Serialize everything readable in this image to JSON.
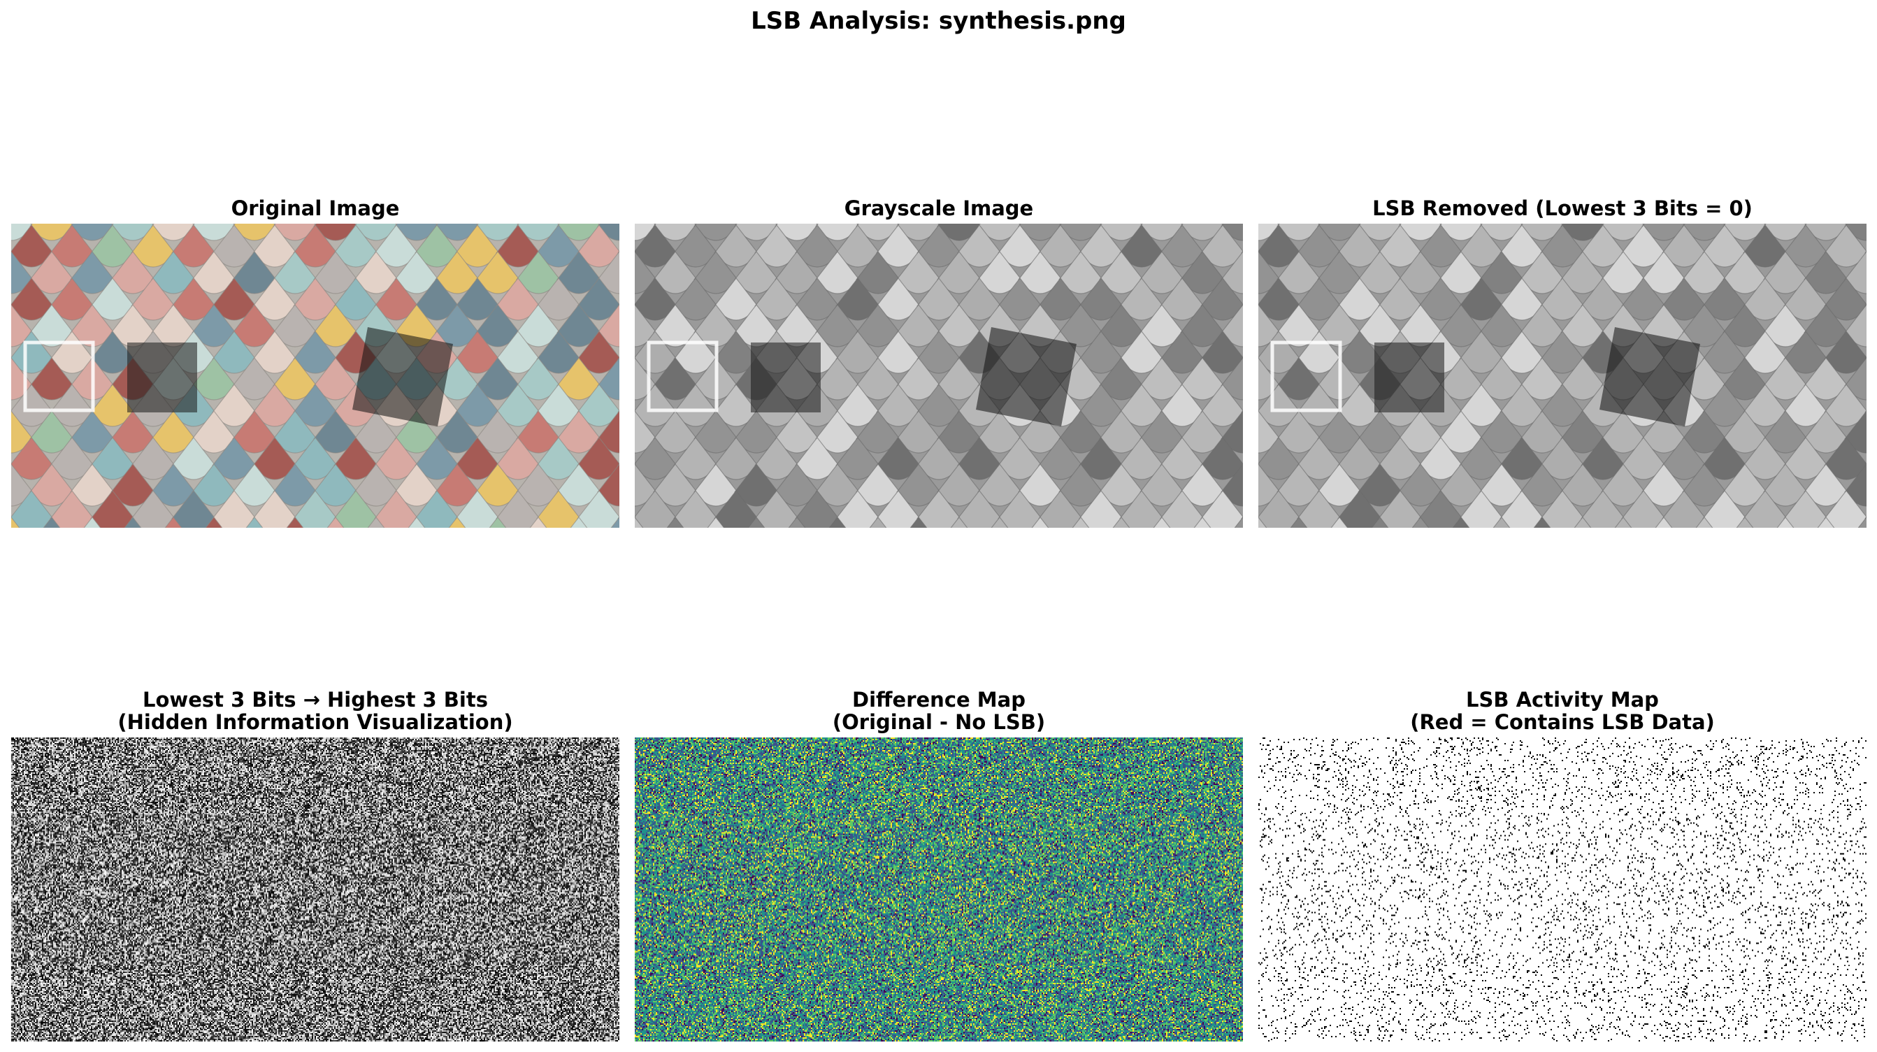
{
  "figure": {
    "title": "LSB Analysis: synthesis.png"
  },
  "panels": [
    {
      "title": "Original Image",
      "subtitle": "",
      "kind": "color-shingles"
    },
    {
      "title": "Grayscale Image",
      "subtitle": "",
      "kind": "gray-shingles"
    },
    {
      "title": "LSB Removed (Lowest 3 Bits = 0)",
      "subtitle": "",
      "kind": "gray-shingles"
    },
    {
      "title": "Lowest 3 Bits → Highest 3 Bits",
      "subtitle": "(Hidden Information Visualization)",
      "kind": "gray-noise"
    },
    {
      "title": "Difference Map",
      "subtitle": "(Original - No LSB)",
      "kind": "viridis-noise"
    },
    {
      "title": "LSB Activity Map",
      "subtitle": "(Red = Contains LSB Data)",
      "kind": "sparse-dots"
    }
  ],
  "colors": {
    "shingle_palette": [
      "#8fb9bd",
      "#a7c9c6",
      "#d9a9a2",
      "#c77b74",
      "#e6c36b",
      "#7d9aa8",
      "#b9b3b0",
      "#9ec2a4",
      "#e3d2c8",
      "#6f8793",
      "#c9dcd8",
      "#a55b55"
    ],
    "viridis": [
      "#440154",
      "#3b528b",
      "#21918c",
      "#5ec962",
      "#fde725"
    ]
  }
}
